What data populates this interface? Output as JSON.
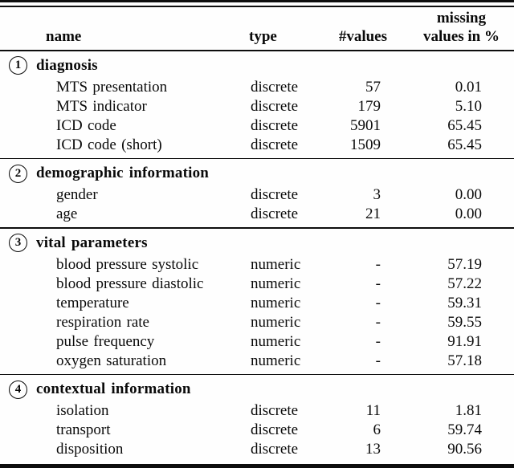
{
  "table": {
    "headers": {
      "name": "name",
      "type": "type",
      "values": "#values",
      "missing_line1": "missing",
      "missing_line2": "values in %"
    },
    "sections": [
      {
        "number": "1",
        "title": "diagnosis",
        "rows": [
          {
            "name": "MTS presentation",
            "type": "discrete",
            "values": "57",
            "missing": "0.01"
          },
          {
            "name": "MTS indicator",
            "type": "discrete",
            "values": "179",
            "missing": "5.10"
          },
          {
            "name": "ICD code",
            "type": "discrete",
            "values": "5901",
            "missing": "65.45"
          },
          {
            "name": "ICD code (short)",
            "type": "discrete",
            "values": "1509",
            "missing": "65.45"
          }
        ]
      },
      {
        "number": "2",
        "title": "demographic information",
        "rows": [
          {
            "name": "gender",
            "type": "discrete",
            "values": "3",
            "missing": "0.00"
          },
          {
            "name": "age",
            "type": "discrete",
            "values": "21",
            "missing": "0.00"
          }
        ]
      },
      {
        "number": "3",
        "title": "vital parameters",
        "rows": [
          {
            "name": "blood pressure systolic",
            "type": "numeric",
            "values": "-",
            "missing": "57.19"
          },
          {
            "name": "blood pressure diastolic",
            "type": "numeric",
            "values": "-",
            "missing": "57.22"
          },
          {
            "name": "temperature",
            "type": "numeric",
            "values": "-",
            "missing": "59.31"
          },
          {
            "name": "respiration rate",
            "type": "numeric",
            "values": "-",
            "missing": "59.55"
          },
          {
            "name": "pulse frequency",
            "type": "numeric",
            "values": "-",
            "missing": "91.91"
          },
          {
            "name": "oxygen saturation",
            "type": "numeric",
            "values": "-",
            "missing": "57.18"
          }
        ]
      },
      {
        "number": "4",
        "title": "contextual information",
        "rows": [
          {
            "name": "isolation",
            "type": "discrete",
            "values": "11",
            "missing": "1.81"
          },
          {
            "name": "transport",
            "type": "discrete",
            "values": "6",
            "missing": "59.74"
          },
          {
            "name": "disposition",
            "type": "discrete",
            "values": "13",
            "missing": "90.56"
          }
        ]
      }
    ]
  }
}
